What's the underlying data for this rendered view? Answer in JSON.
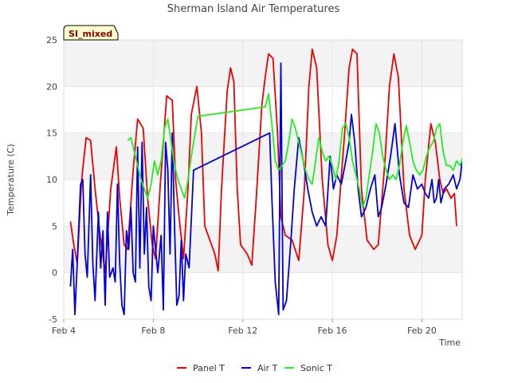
{
  "chart_data": {
    "type": "line",
    "title": "Sherman Island Air Temperatures",
    "xlabel": "Time",
    "ylabel": "Temperature (C)",
    "badge": "SI_mixed",
    "x_unit": "day of February",
    "xlim": [
      4,
      21.8
    ],
    "ylim": [
      -5,
      25
    ],
    "x_ticks": [
      {
        "value": 4,
        "label": "Feb 4"
      },
      {
        "value": 8,
        "label": "Feb 8"
      },
      {
        "value": 12,
        "label": "Feb 12"
      },
      {
        "value": 16,
        "label": "Feb 16"
      },
      {
        "value": 20,
        "label": "Feb 20"
      }
    ],
    "y_ticks": [
      -5,
      0,
      5,
      10,
      15,
      20,
      25
    ],
    "grid": true,
    "band_colors": [
      "#f3f3f3",
      "#ffffff"
    ],
    "plot_border_color": "#dddddd",
    "legend_position": "bottom",
    "series": [
      {
        "name": "Panel T",
        "color": "#ee0000",
        "points": [
          [
            4.3,
            5.5
          ],
          [
            4.45,
            3.0
          ],
          [
            4.6,
            1.0
          ],
          [
            4.8,
            10.0
          ],
          [
            5.0,
            14.5
          ],
          [
            5.2,
            14.2
          ],
          [
            5.4,
            9.0
          ],
          [
            5.6,
            4.5
          ],
          [
            5.85,
            0.0
          ],
          [
            6.1,
            9.0
          ],
          [
            6.35,
            13.5
          ],
          [
            6.5,
            8.0
          ],
          [
            6.7,
            3.0
          ],
          [
            6.85,
            2.5
          ],
          [
            7.1,
            11.0
          ],
          [
            7.3,
            16.5
          ],
          [
            7.55,
            15.5
          ],
          [
            7.75,
            8.0
          ],
          [
            7.95,
            3.0
          ],
          [
            8.1,
            1.5
          ],
          [
            8.3,
            9.0
          ],
          [
            8.6,
            19.0
          ],
          [
            8.85,
            18.5
          ],
          [
            9.0,
            10.0
          ],
          [
            9.15,
            6.0
          ],
          [
            9.35,
            1.5
          ],
          [
            9.55,
            9.0
          ],
          [
            9.7,
            17.0
          ],
          [
            9.95,
            20.0
          ],
          [
            10.15,
            15.0
          ],
          [
            10.3,
            5.0
          ],
          [
            10.6,
            3.0
          ],
          [
            10.75,
            2.0
          ],
          [
            10.9,
            0.2
          ],
          [
            11.05,
            9.0
          ],
          [
            11.3,
            19.5
          ],
          [
            11.45,
            22.0
          ],
          [
            11.6,
            20.5
          ],
          [
            11.75,
            9.0
          ],
          [
            11.9,
            3.0
          ],
          [
            12.2,
            2.0
          ],
          [
            12.4,
            0.8
          ],
          [
            12.6,
            8.0
          ],
          [
            12.85,
            18.0
          ],
          [
            13.0,
            21.0
          ],
          [
            13.15,
            23.5
          ],
          [
            13.35,
            23.0
          ],
          [
            13.55,
            15.0
          ],
          [
            13.7,
            6.0
          ],
          [
            13.9,
            4.0
          ],
          [
            14.2,
            3.5
          ],
          [
            14.5,
            1.3
          ],
          [
            14.75,
            9.0
          ],
          [
            14.95,
            20.0
          ],
          [
            15.1,
            24.0
          ],
          [
            15.3,
            22.0
          ],
          [
            15.55,
            10.0
          ],
          [
            15.8,
            3.0
          ],
          [
            16.0,
            1.3
          ],
          [
            16.2,
            4.0
          ],
          [
            16.55,
            15.0
          ],
          [
            16.75,
            22.0
          ],
          [
            16.9,
            24.0
          ],
          [
            17.1,
            23.5
          ],
          [
            17.3,
            9.0
          ],
          [
            17.55,
            3.5
          ],
          [
            17.85,
            2.5
          ],
          [
            18.05,
            3.0
          ],
          [
            18.35,
            12.0
          ],
          [
            18.55,
            20.0
          ],
          [
            18.75,
            23.5
          ],
          [
            18.95,
            21.0
          ],
          [
            19.2,
            9.0
          ],
          [
            19.45,
            4.0
          ],
          [
            19.7,
            2.5
          ],
          [
            20.0,
            4.0
          ],
          [
            20.15,
            10.0
          ],
          [
            20.4,
            16.0
          ],
          [
            20.6,
            14.0
          ],
          [
            20.8,
            10.0
          ],
          [
            20.95,
            8.5
          ],
          [
            21.1,
            9.0
          ],
          [
            21.3,
            8.0
          ],
          [
            21.45,
            8.5
          ],
          [
            21.55,
            5.0
          ]
        ]
      },
      {
        "name": "Air T",
        "color": "#0000dd",
        "points": [
          [
            4.3,
            -1.5
          ],
          [
            4.4,
            2.5
          ],
          [
            4.5,
            -4.5
          ],
          [
            4.6,
            1.0
          ],
          [
            4.75,
            9.5
          ],
          [
            4.85,
            10.0
          ],
          [
            4.95,
            2.0
          ],
          [
            5.05,
            -0.5
          ],
          [
            5.2,
            10.5
          ],
          [
            5.3,
            1.0
          ],
          [
            5.4,
            -3.0
          ],
          [
            5.55,
            6.5
          ],
          [
            5.65,
            0.5
          ],
          [
            5.75,
            4.5
          ],
          [
            5.85,
            -3.5
          ],
          [
            5.95,
            6.5
          ],
          [
            6.05,
            -0.5
          ],
          [
            6.2,
            0.5
          ],
          [
            6.3,
            -1.0
          ],
          [
            6.4,
            9.5
          ],
          [
            6.5,
            1.0
          ],
          [
            6.6,
            -3.5
          ],
          [
            6.7,
            -4.5
          ],
          [
            6.8,
            4.5
          ],
          [
            6.9,
            2.5
          ],
          [
            7.0,
            7.0
          ],
          [
            7.1,
            0.0
          ],
          [
            7.2,
            -1.0
          ],
          [
            7.3,
            13.5
          ],
          [
            7.4,
            0.5
          ],
          [
            7.5,
            14.0
          ],
          [
            7.6,
            2.0
          ],
          [
            7.7,
            7.0
          ],
          [
            7.8,
            -1.5
          ],
          [
            7.9,
            -3.0
          ],
          [
            8.0,
            5.0
          ],
          [
            8.1,
            2.5
          ],
          [
            8.2,
            0.0
          ],
          [
            8.35,
            4.0
          ],
          [
            8.45,
            -4.0
          ],
          [
            8.55,
            14.0
          ],
          [
            8.65,
            11.0
          ],
          [
            8.75,
            2.0
          ],
          [
            8.85,
            15.0
          ],
          [
            8.95,
            5.0
          ],
          [
            9.05,
            -3.5
          ],
          [
            9.15,
            -2.5
          ],
          [
            9.25,
            3.5
          ],
          [
            9.35,
            -3.0
          ],
          [
            9.45,
            2.0
          ],
          [
            9.6,
            0.5
          ],
          [
            9.8,
            11.0
          ],
          [
            13.2,
            15.0
          ],
          [
            13.3,
            8.0
          ],
          [
            13.45,
            -1.0
          ],
          [
            13.6,
            -4.5
          ],
          [
            13.7,
            22.5
          ],
          [
            13.8,
            -4.0
          ],
          [
            13.95,
            -3.0
          ],
          [
            14.15,
            3.5
          ],
          [
            14.3,
            9.0
          ],
          [
            14.5,
            14.5
          ],
          [
            14.7,
            12.0
          ],
          [
            14.9,
            9.0
          ],
          [
            15.1,
            6.5
          ],
          [
            15.3,
            5.0
          ],
          [
            15.5,
            6.0
          ],
          [
            15.7,
            5.0
          ],
          [
            15.9,
            12.5
          ],
          [
            16.05,
            9.0
          ],
          [
            16.2,
            10.5
          ],
          [
            16.4,
            9.5
          ],
          [
            16.6,
            12.0
          ],
          [
            16.75,
            14.0
          ],
          [
            16.85,
            17.0
          ],
          [
            17.0,
            14.0
          ],
          [
            17.15,
            9.0
          ],
          [
            17.3,
            6.0
          ],
          [
            17.5,
            7.0
          ],
          [
            17.7,
            9.0
          ],
          [
            17.9,
            10.5
          ],
          [
            18.05,
            6.0
          ],
          [
            18.2,
            7.0
          ],
          [
            18.4,
            9.5
          ],
          [
            18.6,
            12.5
          ],
          [
            18.8,
            16.0
          ],
          [
            19.0,
            10.5
          ],
          [
            19.2,
            7.5
          ],
          [
            19.4,
            7.0
          ],
          [
            19.6,
            10.5
          ],
          [
            19.8,
            9.0
          ],
          [
            20.0,
            9.5
          ],
          [
            20.15,
            8.5
          ],
          [
            20.3,
            8.0
          ],
          [
            20.45,
            10.0
          ],
          [
            20.55,
            7.5
          ],
          [
            20.65,
            8.0
          ],
          [
            20.75,
            10.0
          ],
          [
            20.85,
            7.5
          ],
          [
            21.0,
            9.0
          ],
          [
            21.2,
            9.5
          ],
          [
            21.4,
            10.5
          ],
          [
            21.55,
            9.0
          ],
          [
            21.7,
            10.0
          ],
          [
            21.8,
            12.0
          ],
          [
            21.9,
            13.0
          ],
          [
            22.05,
            11.0
          ],
          [
            22.2,
            10.5
          ],
          [
            22.4,
            10.0
          ],
          [
            22.6,
            10.5
          ],
          [
            22.8,
            10.0
          ],
          [
            23.0,
            10.5
          ],
          [
            23.2,
            9.0
          ]
        ]
      },
      {
        "name": "Sonic T",
        "color": "#22ee22",
        "points": [
          [
            6.85,
            14.2
          ],
          [
            7.0,
            14.5
          ],
          [
            7.15,
            13.0
          ],
          [
            7.3,
            11.5
          ],
          [
            7.45,
            10.0
          ],
          [
            7.6,
            9.0
          ],
          [
            7.75,
            8.0
          ],
          [
            7.9,
            9.5
          ],
          [
            8.05,
            12.0
          ],
          [
            8.2,
            10.5
          ],
          [
            8.35,
            12.0
          ],
          [
            8.5,
            15.5
          ],
          [
            8.65,
            16.5
          ],
          [
            8.8,
            14.0
          ],
          [
            8.95,
            11.5
          ],
          [
            9.1,
            10.0
          ],
          [
            9.25,
            9.0
          ],
          [
            9.4,
            8.0
          ],
          [
            9.55,
            10.0
          ],
          [
            9.7,
            12.5
          ],
          [
            9.8,
            14.0
          ],
          [
            10.0,
            16.8
          ],
          [
            13.0,
            17.8
          ],
          [
            13.15,
            19.2
          ],
          [
            13.3,
            16.0
          ],
          [
            13.45,
            12.0
          ],
          [
            13.6,
            11.0
          ],
          [
            13.75,
            11.5
          ],
          [
            13.9,
            12.0
          ],
          [
            14.05,
            14.0
          ],
          [
            14.2,
            16.5
          ],
          [
            14.35,
            15.5
          ],
          [
            14.5,
            14.0
          ],
          [
            14.65,
            12.5
          ],
          [
            14.8,
            11.0
          ],
          [
            14.95,
            10.0
          ],
          [
            15.1,
            9.5
          ],
          [
            15.25,
            12.0
          ],
          [
            15.4,
            14.5
          ],
          [
            15.55,
            13.0
          ],
          [
            15.7,
            12.0
          ],
          [
            15.85,
            12.5
          ],
          [
            16.0,
            11.5
          ],
          [
            16.15,
            10.0
          ],
          [
            16.3,
            12.0
          ],
          [
            16.45,
            15.5
          ],
          [
            16.6,
            16.0
          ],
          [
            16.75,
            14.5
          ],
          [
            16.9,
            12.0
          ],
          [
            17.05,
            10.5
          ],
          [
            17.2,
            9.0
          ],
          [
            17.35,
            7.0
          ],
          [
            17.5,
            8.0
          ],
          [
            17.65,
            10.5
          ],
          [
            17.8,
            13.0
          ],
          [
            17.95,
            16.0
          ],
          [
            18.1,
            15.0
          ],
          [
            18.25,
            12.5
          ],
          [
            18.4,
            11.0
          ],
          [
            18.55,
            10.0
          ],
          [
            18.7,
            10.5
          ],
          [
            18.85,
            10.0
          ],
          [
            19.0,
            11.5
          ],
          [
            19.15,
            14.0
          ],
          [
            19.3,
            15.8
          ],
          [
            19.45,
            14.0
          ],
          [
            19.6,
            12.0
          ],
          [
            19.75,
            11.0
          ],
          [
            19.9,
            10.5
          ],
          [
            20.05,
            11.0
          ],
          [
            20.2,
            12.5
          ],
          [
            20.35,
            13.5
          ],
          [
            20.5,
            14.0
          ],
          [
            20.65,
            15.5
          ],
          [
            20.8,
            16.0
          ],
          [
            20.95,
            13.0
          ],
          [
            21.1,
            11.5
          ],
          [
            21.25,
            11.5
          ],
          [
            21.4,
            11.0
          ],
          [
            21.55,
            12.0
          ],
          [
            21.7,
            11.5
          ],
          [
            21.85,
            12.5
          ],
          [
            22.0,
            13.0
          ],
          [
            22.15,
            14.5
          ],
          [
            22.3,
            13.5
          ],
          [
            22.45,
            14.0
          ],
          [
            22.6,
            14.5
          ],
          [
            22.75,
            14.0
          ],
          [
            22.9,
            13.5
          ],
          [
            23.05,
            13.0
          ],
          [
            23.2,
            12.5
          ],
          [
            23.35,
            11.0
          ],
          [
            23.5,
            10.5
          ]
        ]
      }
    ]
  }
}
